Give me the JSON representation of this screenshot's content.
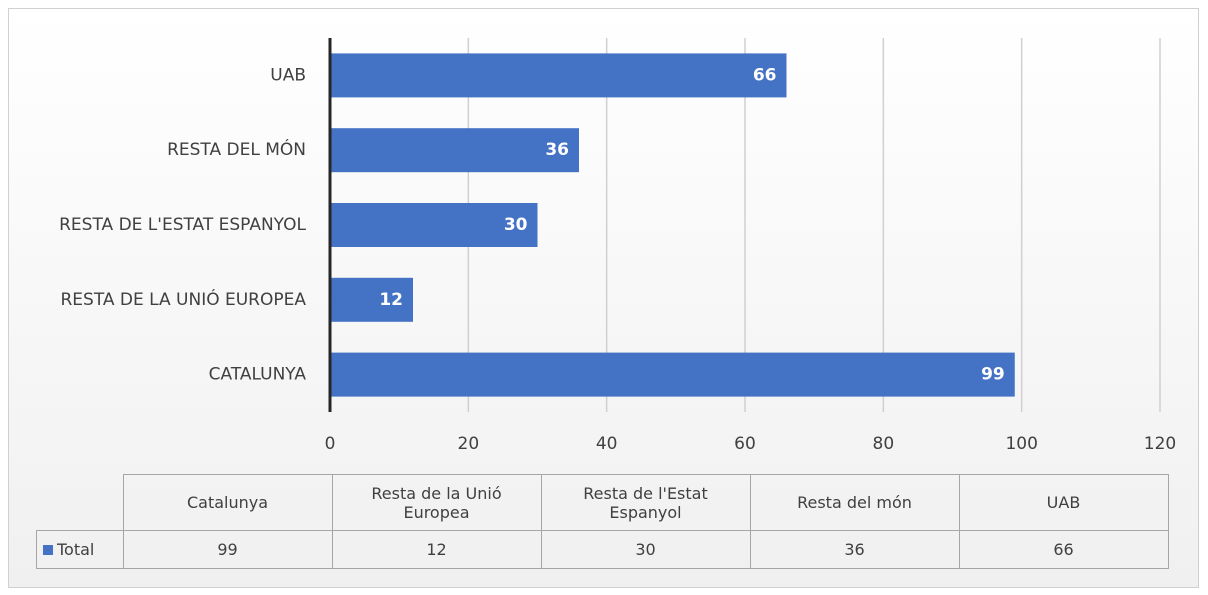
{
  "chart_data": {
    "type": "bar",
    "orientation": "horizontal",
    "categories": [
      "CATALUNYA",
      "RESTA DE LA UNIÓ EUROPEA",
      "RESTA DE L'ESTAT ESPANYOL",
      "RESTA DEL MÓN",
      "UAB"
    ],
    "series": [
      {
        "name": "Total",
        "color": "#4472c4",
        "values": [
          99,
          12,
          30,
          36,
          66
        ]
      }
    ],
    "xlim": [
      0,
      120
    ],
    "xticks": [
      0,
      20,
      40,
      60,
      80,
      100,
      120
    ],
    "grid": true,
    "data_table": {
      "categories": [
        "Catalunya",
        "Resta de la Unió Europea",
        "Resta de l'Estat Espanyol",
        "Resta del món",
        "UAB"
      ]
    }
  }
}
